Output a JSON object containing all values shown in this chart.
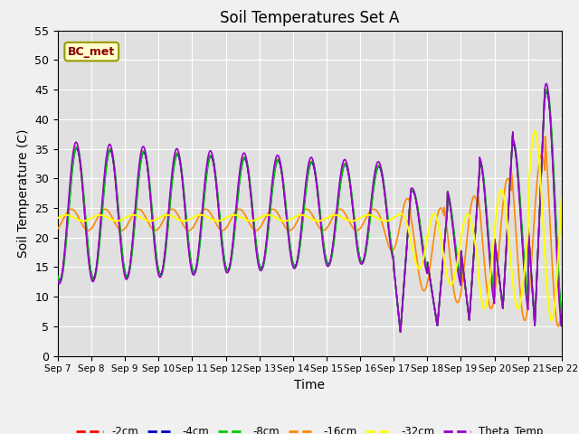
{
  "title": "Soil Temperatures Set A",
  "xlabel": "Time",
  "ylabel": "Soil Temperature (C)",
  "ylim": [
    0,
    55
  ],
  "xlim": [
    0,
    15
  ],
  "annotation_text": "BC_met",
  "annotation_color": "#8b0000",
  "annotation_bg": "#ffffcc",
  "xtick_labels": [
    "Sep 7",
    "Sep 8",
    "Sep 9",
    "Sep 10",
    "Sep 11",
    "Sep 12",
    "Sep 13",
    "Sep 14",
    "Sep 15",
    "Sep 16",
    "Sep 17",
    "Sep 18",
    "Sep 19",
    "Sep 20",
    "Sep 21",
    "Sep 22"
  ],
  "colors": {
    "-2cm": "#ff0000",
    "-4cm": "#0000cc",
    "-8cm": "#00cc00",
    "-16cm": "#ff8800",
    "-32cm": "#ffff00",
    "Theta_Temp": "#9900cc"
  },
  "legend_labels": [
    "-2cm",
    "-4cm",
    "-8cm",
    "-16cm",
    "-32cm",
    "Theta_Temp"
  ]
}
